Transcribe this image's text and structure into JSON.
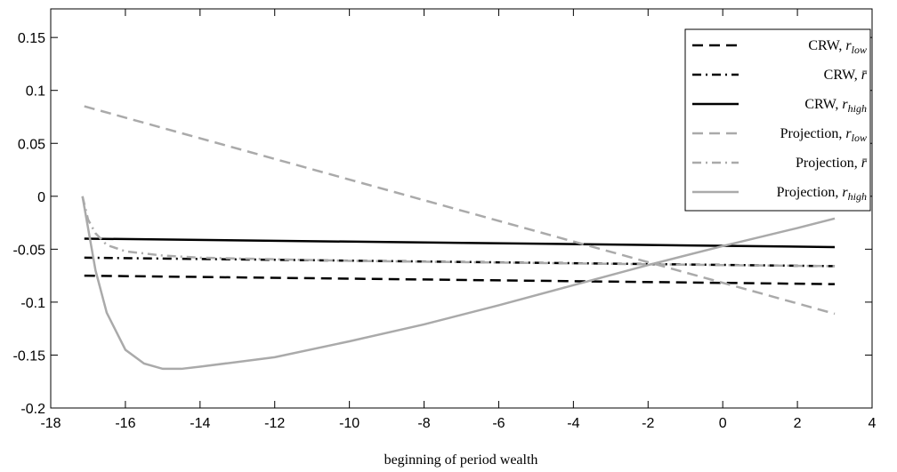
{
  "chart_data": {
    "type": "line",
    "x_label": "beginning of period wealth",
    "xlim": [
      -18,
      4
    ],
    "xticks": [
      -18,
      -16,
      -14,
      -12,
      -10,
      -8,
      -6,
      -4,
      -2,
      0,
      2,
      4
    ],
    "ylim": [
      -0.2,
      0.177
    ],
    "yticks": [
      -0.2,
      -0.15,
      -0.1,
      -0.05,
      0,
      0.05,
      0.1,
      0.15
    ],
    "legend": "upper right",
    "series": [
      {
        "name": "CRW, r_low",
        "color": "#000000",
        "line_style": "dashed",
        "x": [
          -17.1,
          3
        ],
        "values": [
          -0.075,
          -0.083
        ]
      },
      {
        "name": "CRW, r̄",
        "color": "#000000",
        "line_style": "dashdot",
        "x": [
          -17.1,
          3
        ],
        "values": [
          -0.058,
          -0.066
        ]
      },
      {
        "name": "CRW, r_high",
        "color": "#000000",
        "line_style": "solid",
        "x": [
          -17.1,
          3
        ],
        "values": [
          -0.04,
          -0.048
        ]
      },
      {
        "name": "Projection, r_low",
        "color": "#aaaaaa",
        "line_style": "dashed",
        "x": [
          -17.1,
          3
        ],
        "values": [
          0.085,
          -0.111
        ]
      },
      {
        "name": "Projection, r̄",
        "color": "#aaaaaa",
        "line_style": "dashdot",
        "x": [
          -17.15,
          -17,
          -16.8,
          -16.5,
          -16,
          -15,
          -14,
          -10,
          -5,
          0,
          3
        ],
        "values": [
          0,
          -0.022,
          -0.035,
          -0.046,
          -0.052,
          -0.056,
          -0.058,
          -0.061,
          -0.063,
          -0.065,
          -0.066
        ]
      },
      {
        "name": "Projection, r_high",
        "color": "#aaaaaa",
        "line_style": "solid",
        "x": [
          -17.15,
          -17,
          -16.8,
          -16.5,
          -16,
          -15.5,
          -15,
          -14.5,
          -14,
          -12,
          -10,
          -8,
          -6,
          -4,
          -2,
          0,
          2,
          3
        ],
        "values": [
          0,
          -0.03,
          -0.07,
          -0.11,
          -0.145,
          -0.158,
          -0.163,
          -0.163,
          -0.161,
          -0.152,
          -0.137,
          -0.121,
          -0.103,
          -0.084,
          -0.065,
          -0.047,
          -0.03,
          -0.021
        ]
      }
    ]
  }
}
